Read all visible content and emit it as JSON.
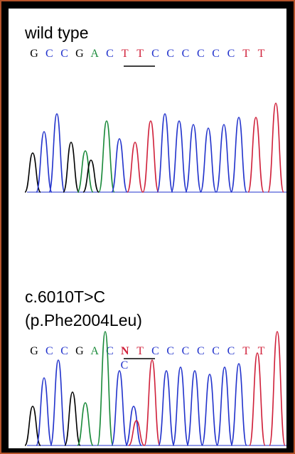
{
  "panels": [
    {
      "label_lines": [
        "wild type"
      ],
      "sequence": [
        "G",
        "C",
        "C",
        "G",
        "A",
        "C",
        "T",
        "T",
        "C",
        "C",
        "C",
        "C",
        "C",
        "C",
        "T",
        "T"
      ]
    },
    {
      "label_lines": [
        "c.6010T>C",
        "(p.Phe2004Leu)"
      ],
      "sequence": [
        "G",
        "C",
        "C",
        "G",
        "A",
        "C",
        "N",
        "T",
        "C",
        "C",
        "C",
        "C",
        "C",
        "C",
        "T",
        "T"
      ],
      "alt_base": "C"
    }
  ]
}
